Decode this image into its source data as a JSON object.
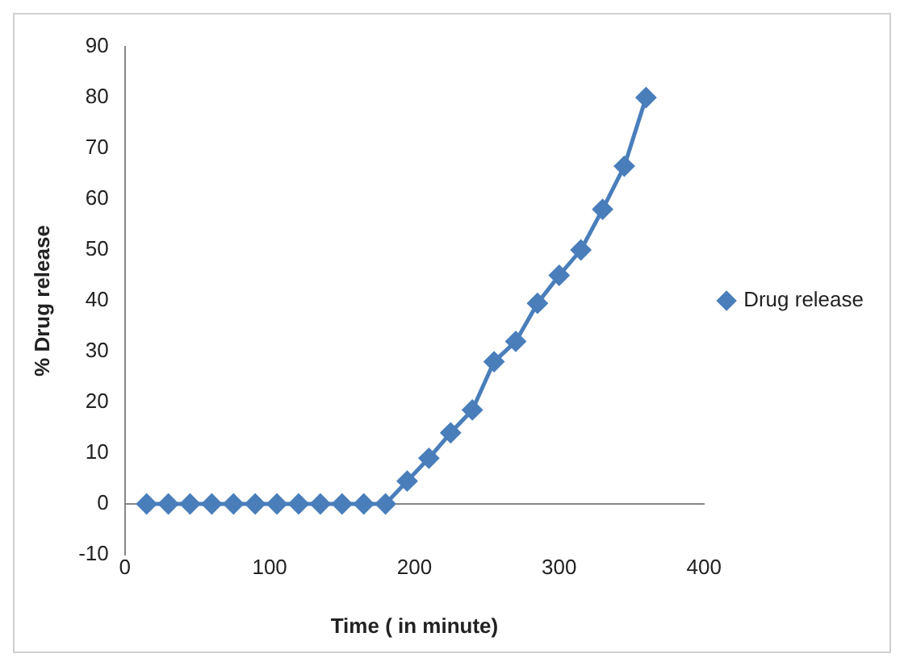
{
  "chart_data": {
    "type": "line",
    "xlabel": "Time ( in minute)",
    "ylabel": "% Drug release",
    "x": [
      15,
      30,
      45,
      60,
      75,
      90,
      105,
      120,
      135,
      150,
      165,
      180,
      195,
      210,
      225,
      240,
      255,
      270,
      285,
      300,
      315,
      330,
      345,
      360
    ],
    "series": [
      {
        "name": "Drug release",
        "color": "#4a7ebb",
        "values": [
          0,
          0,
          0,
          0,
          0,
          0,
          0,
          0,
          0,
          0,
          0,
          0,
          4.5,
          9,
          14,
          18.5,
          28,
          32,
          39.5,
          45,
          50,
          58,
          66.5,
          80
        ]
      }
    ],
    "xlim": [
      0,
      400
    ],
    "xticks": [
      0,
      100,
      200,
      300,
      400
    ],
    "ylim": [
      -10,
      90
    ],
    "yticks": [
      -10,
      0,
      10,
      20,
      30,
      40,
      50,
      60,
      70,
      80,
      90
    ],
    "grid": false,
    "legend": "right",
    "marker": "diamond",
    "line_style": "solid"
  }
}
